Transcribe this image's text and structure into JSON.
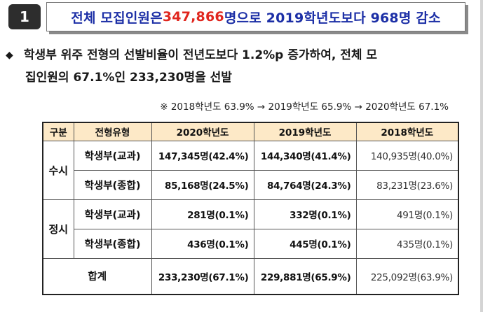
{
  "header": {
    "badge": "1",
    "title_prefix": "전체 모집인원은 ",
    "title_highlight": "347,866",
    "title_suffix": "명으로 2019학년도보다 968명 감소"
  },
  "bullet": {
    "marker": "◆",
    "line1": "학생부 위주 전형의 선발비율이 전년도보다 1.2%p 증가하여, 전체 모",
    "line2": "집인원의 67.1%인 233,230명을 선발"
  },
  "note": "※ 2018학년도 63.9% → 2019학년도 65.9% → 2020학년도 67.1%",
  "table": {
    "headers": [
      "구분",
      "전형유형",
      "2020학년도",
      "2019학년도",
      "2018학년도"
    ],
    "groups": [
      {
        "name": "수시",
        "rows": [
          {
            "type": "학생부(교과)",
            "y2020": "147,345명(42.4%)",
            "y2019": "144,340명(41.4%)",
            "y2018": "140,935명(40.0%)"
          },
          {
            "type": "학생부(종합)",
            "y2020": "85,168명(24.5%)",
            "y2019": "84,764명(24.3%)",
            "y2018": "83,231명(23.6%)"
          }
        ]
      },
      {
        "name": "정시",
        "rows": [
          {
            "type": "학생부(교과)",
            "y2020": "281명(0.1%)",
            "y2019": "332명(0.1%)",
            "y2018": "491명(0.1%)"
          },
          {
            "type": "학생부(종합)",
            "y2020": "436명(0.1%)",
            "y2019": "445명(0.1%)",
            "y2018": "435명(0.1%)"
          }
        ]
      }
    ],
    "total": {
      "label": "합계",
      "y2020": "233,230명(67.1%)",
      "y2019": "229,881명(65.9%)",
      "y2018": "225,092명(63.9%)"
    }
  },
  "colors": {
    "title_blue": "#1c2fa6",
    "highlight_red": "#e0261e",
    "header_fill": "#fde9c7"
  }
}
